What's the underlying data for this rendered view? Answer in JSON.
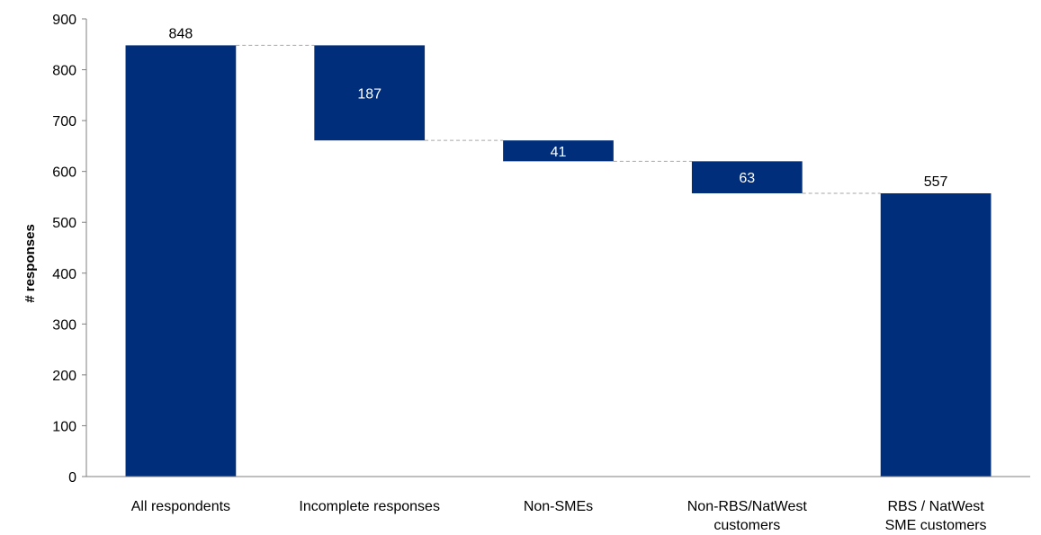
{
  "chart_data": {
    "type": "bar",
    "subtype": "waterfall",
    "title": "",
    "xlabel": "",
    "ylabel": "# responses",
    "ylim": [
      0,
      900
    ],
    "yticks": [
      0,
      100,
      200,
      300,
      400,
      500,
      600,
      700,
      800,
      900
    ],
    "grid": false,
    "legend": "none",
    "bar_color": "#002E7A",
    "connector_color": "#A6A6A6",
    "categories": [
      {
        "label_lines": [
          "All respondents"
        ],
        "kind": "total",
        "base": 0,
        "value": 848,
        "label": "848"
      },
      {
        "label_lines": [
          "Incomplete responses"
        ],
        "kind": "decrease",
        "base": 661,
        "value": 187,
        "label": "187"
      },
      {
        "label_lines": [
          "Non-SMEs"
        ],
        "kind": "decrease",
        "base": 620,
        "value": 41,
        "label": "41"
      },
      {
        "label_lines": [
          "Non-RBS/NatWest",
          "customers"
        ],
        "kind": "decrease",
        "base": 557,
        "value": 63,
        "label": "63"
      },
      {
        "label_lines": [
          "RBS / NatWest",
          "SME customers"
        ],
        "kind": "total",
        "base": 0,
        "value": 557,
        "label": "557"
      }
    ]
  }
}
